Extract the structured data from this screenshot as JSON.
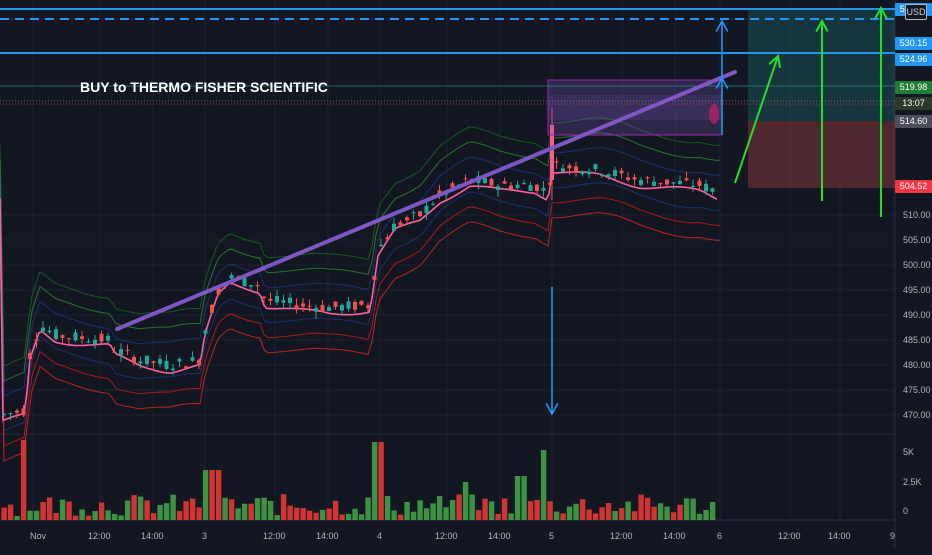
{
  "annotation": {
    "title": "BUY to THERMO FISHER SCIENTIFIC"
  },
  "currency_button": {
    "label": "USD"
  },
  "price_axis": {
    "ticks": [
      "510.00",
      "505.00",
      "500.00",
      "495.00",
      "490.00",
      "485.00",
      "480.00",
      "475.00",
      "470.00"
    ],
    "labels": [
      {
        "text": "531.82",
        "color": "#2196f3",
        "name": "price-label-531-82"
      },
      {
        "text": "530.15",
        "color": "#2196f3",
        "name": "price-label-530-15"
      },
      {
        "text": "524.96",
        "color": "#2196f3",
        "name": "price-label-524-96"
      },
      {
        "text": "519.98",
        "color": "#1e7e34",
        "name": "price-label-519-98"
      },
      {
        "text": "13:07",
        "color": "#2a3a2a",
        "name": "countdown-label"
      },
      {
        "text": "514.60",
        "color": "#4a4e5a",
        "name": "price-label-514-60"
      },
      {
        "text": "504.52",
        "color": "#f23645",
        "name": "price-label-504-52"
      }
    ]
  },
  "volume_axis": {
    "ticks": [
      "5K",
      "2.5K",
      "0"
    ]
  },
  "time_axis": {
    "labels": [
      "Nov",
      "12:00",
      "14:00",
      "3",
      "12:00",
      "14:00",
      "4",
      "12:00",
      "14:00",
      "5",
      "12:00",
      "14:00",
      "6",
      "12:00",
      "14:00",
      "9"
    ]
  },
  "colors": {
    "background": "#131722",
    "up": "#26a69a",
    "down": "#ef5350",
    "vol_up": "#43a047",
    "vol_down": "#e53935",
    "vwap": "#ff5fa2",
    "trendline": "#7e57c2",
    "blue_line": "#2196f3",
    "green_arrow": "#22e02a"
  }
}
